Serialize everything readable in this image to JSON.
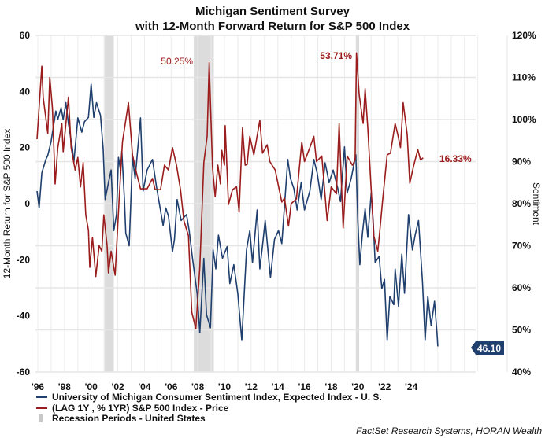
{
  "chart_data": {
    "type": "line",
    "title": "Michigan Sentiment Survey",
    "subtitle": "with 12-Month Forward Return for S&P 500 Index",
    "ylabel_left": "12-Month Return for S&P 500 Index",
    "ylabel_right": "Sentiment",
    "ylim_left": [
      -60,
      60
    ],
    "ylim_right": [
      40,
      120
    ],
    "yticks_left": [
      "60",
      "40",
      "20",
      "0",
      "-20",
      "-40",
      "-60"
    ],
    "yticks_right": [
      "120%",
      "110%",
      "100%",
      "90%",
      "80%",
      "70%",
      "60%",
      "50%",
      "40%"
    ],
    "xlim": [
      1995.8,
      2029.3
    ],
    "xticks": [
      "'96",
      "'98",
      "'00",
      "'02",
      "'04",
      "'06",
      "'08",
      "'10",
      "'12",
      "'14",
      "'16",
      "'18",
      "'20",
      "'22",
      "'24"
    ],
    "grid": true,
    "legend_position": "bottom-left",
    "colors": {
      "sentiment": "#1f3f6e",
      "sp500": "#9b1c1c",
      "recession": "#dcdcdc"
    },
    "series": [
      {
        "name": "University of Michigan Consumer Sentiment Index, Expected Index - U. S.",
        "axis": "right",
        "x": [
          1995.94,
          1996.1,
          1996.3,
          1996.6,
          1996.75,
          1997.0,
          1997.35,
          1997.5,
          1997.75,
          1997.9,
          1998.1,
          1998.3,
          1998.6,
          1998.7,
          1999.0,
          1999.3,
          1999.5,
          1999.8,
          2000.0,
          2000.2,
          2000.4,
          2000.7,
          2000.9,
          2001.05,
          2001.3,
          2001.5,
          2001.7,
          2001.9,
          2002.05,
          2002.2,
          2002.3,
          2002.5,
          2002.6,
          2002.85,
          2003.1,
          2003.3,
          2003.7,
          2003.9,
          2004.2,
          2004.6,
          2004.9,
          2005.4,
          2005.6,
          2005.8,
          2006.1,
          2006.25,
          2006.45,
          2006.75,
          2007.15,
          2007.35,
          2007.6,
          2007.95,
          2008.15,
          2008.45,
          2008.65,
          2008.95,
          2009.15,
          2009.35,
          2009.55,
          2009.85,
          2010.2,
          2010.4,
          2010.7,
          2011.0,
          2011.3,
          2011.65,
          2011.9,
          2012.1,
          2012.45,
          2012.65,
          2012.85,
          2013.05,
          2013.45,
          2013.75,
          2014.05,
          2014.3,
          2014.75,
          2014.95,
          2015.2,
          2015.45,
          2015.75,
          2016.0,
          2016.4,
          2016.7,
          2016.95,
          2017.25,
          2017.55,
          2017.85,
          2018.15,
          2018.5,
          2018.7,
          2019.0,
          2019.2,
          2019.5,
          2019.85,
          2020.0,
          2020.15,
          2020.35,
          2020.55,
          2020.75,
          2021.0,
          2021.15,
          2021.3,
          2021.6,
          2021.8,
          2022.0,
          2022.2,
          2022.4,
          2022.7,
          2022.8,
          2023.05,
          2023.3,
          2023.5,
          2023.8,
          2024.1,
          2024.3,
          2024.55,
          2024.85,
          2025.05,
          2025.25,
          2025.5,
          2025.75,
          2025.95,
          2026.0
        ],
        "values": [
          83,
          79,
          87.3,
          90.5,
          91.5,
          94.8,
          102,
          100,
          102.8,
          100,
          104,
          99,
          93,
          89.7,
          100.4,
          97,
          99.5,
          100.5,
          108.4,
          100.5,
          104,
          101,
          93,
          81,
          85,
          88,
          73.6,
          77.4,
          91,
          88,
          92.5,
          81,
          73,
          70,
          91,
          86,
          100.4,
          83,
          88,
          90.5,
          84,
          74.8,
          79,
          77,
          68.6,
          71.5,
          81,
          76,
          77.4,
          73.6,
          67,
          58.7,
          49.3,
          67,
          53.6,
          50.5,
          69,
          64.5,
          72.5,
          67,
          69.8,
          61,
          65.5,
          58.7,
          47.5,
          69,
          73.6,
          66,
          78.5,
          64.5,
          70,
          76,
          62.4,
          71.5,
          73.6,
          70.5,
          90.5,
          86,
          83.6,
          78.5,
          85,
          78.5,
          83,
          90.5,
          87.3,
          81,
          89.7,
          85,
          88,
          83.6,
          80.5,
          93.5,
          82.5,
          86,
          91.6,
          76,
          65.5,
          73,
          78.8,
          72,
          82.5,
          76,
          66,
          67.5,
          59.8,
          62,
          47.5,
          58,
          56,
          64.5,
          55.6,
          68,
          58.7,
          77.4,
          69,
          72.5,
          76,
          61.5,
          47.5,
          58,
          51,
          56.8,
          48.6,
          46.1
        ]
      },
      {
        "name": "(LAG 1Y , % 1YR) S&P 500 Index - Price",
        "axis": "left",
        "x": [
          1995.94,
          1996.3,
          1996.4,
          1996.6,
          1996.75,
          1996.9,
          1997.1,
          1997.3,
          1997.5,
          1997.8,
          1997.9,
          1998.3,
          1998.5,
          1998.8,
          1999.0,
          1999.2,
          1999.4,
          1999.6,
          1999.8,
          1999.9,
          2000.1,
          2000.35,
          2000.6,
          2000.8,
          2000.95,
          2001.2,
          2001.3,
          2001.5,
          2001.8,
          2002.1,
          2002.35,
          2002.8,
          2003.1,
          2003.4,
          2003.7,
          2004.2,
          2004.6,
          2004.8,
          2005.2,
          2005.5,
          2005.8,
          2006.1,
          2006.4,
          2006.7,
          2006.95,
          2007.3,
          2007.55,
          2007.85,
          2008.15,
          2008.45,
          2008.7,
          2008.85,
          2009.1,
          2009.3,
          2009.5,
          2009.7,
          2009.8,
          2010.0,
          2010.05,
          2010.3,
          2010.6,
          2010.9,
          2011.1,
          2011.35,
          2011.55,
          2011.7,
          2011.9,
          2012.2,
          2012.65,
          2012.85,
          2013.2,
          2013.4,
          2013.8,
          2014.3,
          2014.5,
          2014.8,
          2015.0,
          2015.4,
          2015.8,
          2016.0,
          2016.4,
          2016.7,
          2016.9,
          2017.3,
          2017.7,
          2018.0,
          2018.4,
          2018.6,
          2018.9,
          2019.2,
          2019.6,
          2019.8,
          2019.9,
          2020.1,
          2020.4,
          2020.55,
          2020.75,
          2021.0,
          2021.2,
          2021.5,
          2021.65,
          2021.85,
          2022.2,
          2022.45,
          2022.8,
          2023.0,
          2023.2,
          2023.4,
          2023.7,
          2023.9,
          2024.2,
          2024.5,
          2024.7,
          2024.9
        ],
        "values": [
          23,
          49,
          38,
          30.5,
          25,
          45,
          34,
          7,
          20,
          28.6,
          18.5,
          38,
          20,
          12,
          16.5,
          6,
          14.6,
          -4,
          -9.5,
          -22.7,
          -12,
          -26,
          -15,
          -17,
          -4,
          -15,
          -24.7,
          -17,
          -25.5,
          1.7,
          22,
          36,
          17.4,
          11,
          5.3,
          5.3,
          9,
          5,
          5,
          13.7,
          12,
          20,
          13.7,
          5,
          -6,
          -11.5,
          -38.7,
          -44.6,
          -22.7,
          14.6,
          24,
          50.25,
          13,
          2.5,
          13.7,
          7,
          19,
          13.7,
          27.8,
          -0.3,
          5,
          6,
          -3,
          27,
          13.7,
          14,
          24,
          17.4,
          29.7,
          18,
          21,
          15,
          12,
          0.6,
          2,
          -8,
          0,
          1.7,
          22,
          15,
          20,
          24,
          15,
          17,
          -6,
          6,
          3.5,
          28.6,
          -8.7,
          17,
          13.7,
          15.6,
          53.71,
          39,
          28.6,
          41,
          27,
          5,
          -11.5,
          -17,
          -9.5,
          0.6,
          17.4,
          18,
          28.6,
          24.6,
          20,
          36,
          24.7,
          7.3,
          13.7,
          19.3,
          15.6,
          16.33
        ]
      }
    ],
    "recessions": [
      [
        2000.95,
        2001.7
      ],
      [
        2007.7,
        2009.2
      ],
      [
        2019.85,
        2020.1
      ]
    ],
    "annotations": {
      "peak_2008": "50.25%",
      "peak_2020": "53.71%",
      "last_sp500": "16.33%",
      "last_sentiment": "46.10"
    },
    "legend": [
      "University of Michigan Consumer Sentiment Index, Expected Index - U. S.",
      "(LAG 1Y , % 1YR) S&P 500 Index - Price",
      "Recession Periods - United States"
    ],
    "source": "FactSet Research Systems, HORAN Wealth"
  }
}
